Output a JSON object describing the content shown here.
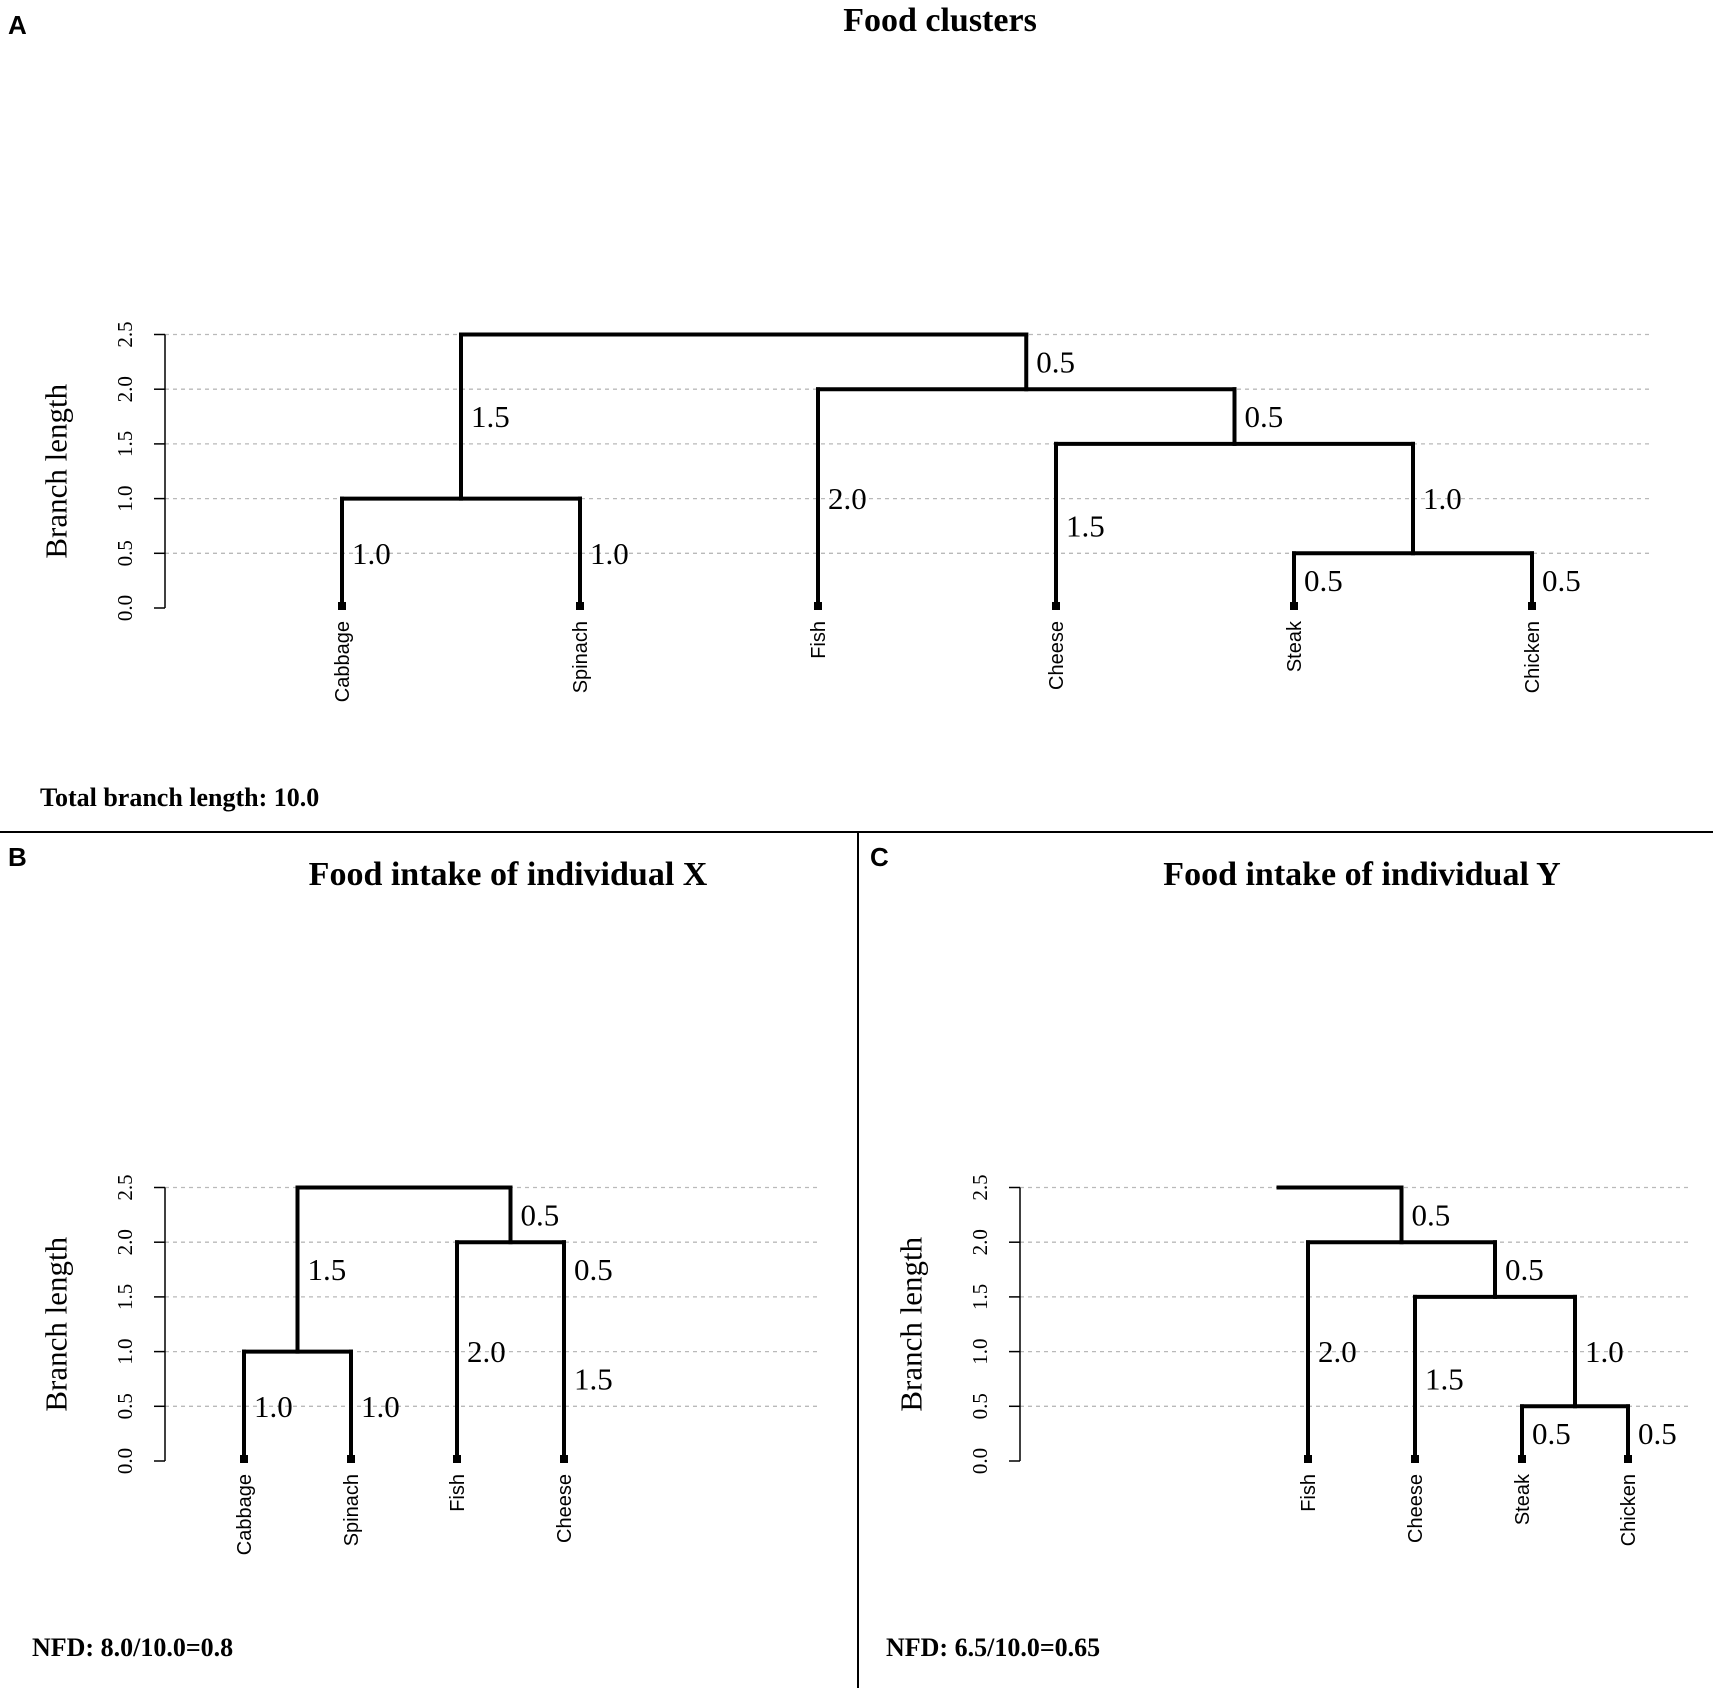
{
  "panels": [
    {
      "id": "A",
      "letter": "A",
      "title": "Food clusters",
      "ylabel": "Branch length",
      "yticks": [
        "0.0",
        "0.5",
        "1.0",
        "1.5",
        "2.0",
        "2.5"
      ],
      "leaves": [
        "Cabbage",
        "Spinach",
        "Fish",
        "Cheese",
        "Steak",
        "Chicken"
      ],
      "footer": "Total branch length: 10.0",
      "tree": {
        "branches": [
          {
            "label": "1.0",
            "length": 1.0
          },
          {
            "label": "1.0",
            "length": 1.0
          },
          {
            "label": "1.5",
            "length": 1.5
          },
          {
            "label": "2.0",
            "length": 2.0
          },
          {
            "label": "1.5",
            "length": 1.5
          },
          {
            "label": "0.5",
            "length": 0.5
          },
          {
            "label": "0.5",
            "length": 0.5
          },
          {
            "label": "1.0",
            "length": 1.0
          },
          {
            "label": "0.5",
            "length": 0.5
          },
          {
            "label": "0.5",
            "length": 0.5
          }
        ]
      }
    },
    {
      "id": "B",
      "letter": "B",
      "title": "Food intake of individual X",
      "ylabel": "Branch length",
      "yticks": [
        "0.0",
        "0.5",
        "1.0",
        "1.5",
        "2.0",
        "2.5"
      ],
      "leaves": [
        "Cabbage",
        "Spinach",
        "Fish",
        "Cheese"
      ],
      "footer": "NFD: 8.0/10.0=0.8",
      "tree": {
        "branches": [
          {
            "label": "1.0",
            "length": 1.0
          },
          {
            "label": "1.0",
            "length": 1.0
          },
          {
            "label": "1.5",
            "length": 1.5
          },
          {
            "label": "2.0",
            "length": 2.0
          },
          {
            "label": "1.5",
            "length": 1.5
          },
          {
            "label": "0.5",
            "length": 0.5
          },
          {
            "label": "0.5",
            "length": 0.5
          }
        ]
      }
    },
    {
      "id": "C",
      "letter": "C",
      "title": "Food intake of individual Y",
      "ylabel": "Branch length",
      "yticks": [
        "0.0",
        "0.5",
        "1.0",
        "1.5",
        "2.0",
        "2.5"
      ],
      "leaves": [
        "Fish",
        "Cheese",
        "Steak",
        "Chicken"
      ],
      "footer": "NFD: 6.5/10.0=0.65",
      "tree": {
        "branches": [
          {
            "label": "2.0",
            "length": 2.0
          },
          {
            "label": "1.5",
            "length": 1.5
          },
          {
            "label": "0.5",
            "length": 0.5
          },
          {
            "label": "0.5",
            "length": 0.5
          },
          {
            "label": "1.0",
            "length": 1.0
          },
          {
            "label": "0.5",
            "length": 0.5
          },
          {
            "label": "0.5",
            "length": 0.5
          }
        ]
      }
    }
  ]
}
